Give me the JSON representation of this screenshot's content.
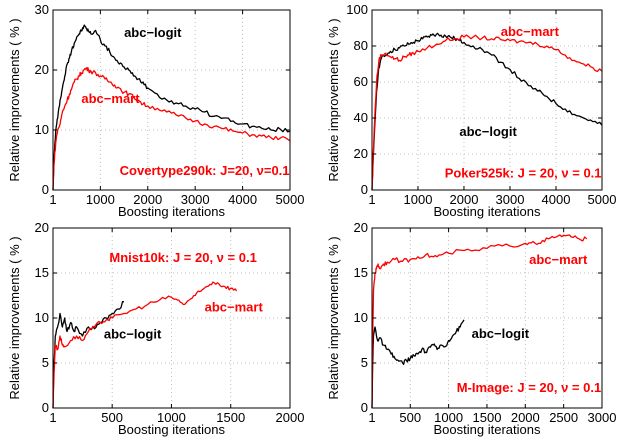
{
  "chart_data": [
    {
      "type": "line",
      "annotation": "Covertype290k: J=20, ν=0.1",
      "xlabel": "Boosting iterations",
      "ylabel": "Relative improvements ( % )",
      "xlim": [
        1,
        5000
      ],
      "ylim": [
        0,
        30
      ],
      "xticks": [
        1,
        1000,
        2000,
        3000,
        4000,
        5000
      ],
      "xtick_labels": [
        "1",
        "1000",
        "2000",
        "3000",
        "4000",
        "5000"
      ],
      "yticks": [
        0,
        10,
        20,
        30
      ],
      "ytick_labels": [
        "0",
        "10",
        "20",
        "30"
      ],
      "grid": true,
      "series": [
        {
          "name": "abc−logit",
          "color": "#000000",
          "x": [
            1,
            20,
            60,
            100,
            150,
            200,
            250,
            300,
            350,
            400,
            450,
            500,
            550,
            600,
            650,
            700,
            750,
            800,
            900,
            1000,
            1100,
            1200,
            1300,
            1400,
            1500,
            1600,
            1700,
            1800,
            1900,
            2000,
            2200,
            2400,
            2600,
            2800,
            3000,
            3200,
            3400,
            3600,
            3800,
            4000,
            4200,
            4400,
            4600,
            4800,
            5000
          ],
          "y": [
            0,
            5,
            10,
            12,
            15,
            17,
            19,
            21,
            22,
            23.5,
            24.5,
            25.5,
            26,
            26.5,
            27.3,
            27,
            26.5,
            26,
            26.6,
            25,
            24,
            23,
            22,
            21,
            20.5,
            20,
            19,
            18.5,
            18,
            17,
            16,
            15,
            14.5,
            14,
            13.5,
            13,
            12.3,
            12,
            11.5,
            11,
            10.6,
            10.3,
            10,
            10.1,
            9.8
          ]
        },
        {
          "name": "abc−mart",
          "color": "#ff0000",
          "x": [
            1,
            20,
            60,
            100,
            150,
            200,
            250,
            300,
            350,
            400,
            450,
            500,
            550,
            600,
            650,
            700,
            750,
            800,
            900,
            1000,
            1100,
            1200,
            1300,
            1400,
            1500,
            1600,
            1700,
            1800,
            1900,
            2000,
            2200,
            2400,
            2600,
            2800,
            3000,
            3200,
            3400,
            3600,
            3800,
            4000,
            4200,
            4400,
            4600,
            4800,
            5000
          ],
          "y": [
            0,
            4,
            8,
            10,
            11,
            13,
            14,
            15,
            16,
            17,
            18,
            18.5,
            19,
            19.5,
            20,
            20.3,
            20,
            19.8,
            19.5,
            19,
            18.5,
            18,
            17.5,
            17,
            16.3,
            16,
            15.5,
            15,
            14.3,
            14,
            13.6,
            13,
            12.5,
            12,
            11.5,
            11,
            10.6,
            10.2,
            9.8,
            9.5,
            9.2,
            9,
            8.7,
            8.7,
            8.2
          ]
        }
      ]
    },
    {
      "type": "line",
      "annotation": "Poker525k: J = 20, ν = 0.1",
      "xlabel": "Boosting iterations",
      "ylabel": "Relative improvements ( % )",
      "xlim": [
        1,
        5000
      ],
      "ylim": [
        0,
        100
      ],
      "xticks": [
        1,
        1000,
        2000,
        3000,
        4000,
        5000
      ],
      "xtick_labels": [
        "1",
        "1000",
        "2000",
        "3000",
        "4000",
        "5000"
      ],
      "yticks": [
        0,
        20,
        40,
        60,
        80,
        100
      ],
      "ytick_labels": [
        "0",
        "20",
        "40",
        "60",
        "80",
        "100"
      ],
      "grid": true,
      "series": [
        {
          "name": "abc−logit",
          "color": "#000000",
          "x": [
            1,
            50,
            100,
            150,
            200,
            300,
            400,
            500,
            600,
            700,
            800,
            900,
            1000,
            1100,
            1200,
            1300,
            1400,
            1500,
            1600,
            1700,
            1800,
            1900,
            2000,
            2200,
            2400,
            2600,
            2800,
            3000,
            3200,
            3400,
            3600,
            3800,
            4000,
            4200,
            4400,
            4600,
            4800,
            5000
          ],
          "y": [
            0,
            30,
            55,
            68,
            73,
            75,
            77,
            78,
            79,
            80,
            81,
            82,
            83,
            84,
            85,
            86,
            86.5,
            86,
            85.5,
            85,
            84,
            83,
            82,
            80,
            78,
            75,
            71,
            67,
            62,
            58,
            55,
            52,
            48,
            45,
            42,
            40,
            38,
            36
          ]
        },
        {
          "name": "abc−mart",
          "color": "#ff0000",
          "x": [
            1,
            50,
            100,
            150,
            200,
            300,
            400,
            500,
            600,
            700,
            800,
            900,
            1000,
            1200,
            1400,
            1600,
            1800,
            2000,
            2200,
            2400,
            2600,
            2800,
            3000,
            3200,
            3400,
            3600,
            3800,
            4000,
            4200,
            4400,
            4600,
            4800,
            5000
          ],
          "y": [
            0,
            35,
            60,
            72,
            75,
            76,
            74,
            73,
            72,
            74,
            75,
            76,
            77,
            79,
            81,
            83,
            84,
            85,
            85,
            84.5,
            84,
            83.5,
            83,
            82.5,
            82,
            81,
            80,
            78,
            75,
            72,
            70,
            68,
            66
          ]
        }
      ]
    },
    {
      "type": "line",
      "annotation": "Mnist10k: J = 20, ν = 0.1",
      "xlabel": "Boosting iterations",
      "ylabel": "Relative improvements ( % )",
      "xlim": [
        1,
        2000
      ],
      "ylim": [
        0,
        20
      ],
      "xticks": [
        1,
        500,
        1000,
        1500,
        2000
      ],
      "xtick_labels": [
        "1",
        "500",
        "1000",
        "1500",
        "2000"
      ],
      "yticks": [
        0,
        5,
        10,
        15,
        20
      ],
      "ytick_labels": [
        "0",
        "5",
        "10",
        "15",
        "20"
      ],
      "grid": true,
      "series": [
        {
          "name": "abc−logit",
          "color": "#000000",
          "x": [
            1,
            10,
            20,
            40,
            60,
            80,
            100,
            120,
            150,
            180,
            200,
            250,
            300,
            350,
            400,
            450,
            500,
            550,
            600
          ],
          "y": [
            0,
            5,
            8,
            9,
            10.5,
            9,
            10,
            8.5,
            9.5,
            8.5,
            9,
            8,
            9,
            8.8,
            9.5,
            10,
            10.5,
            11,
            11.8
          ]
        },
        {
          "name": "abc−mart",
          "color": "#ff0000",
          "x": [
            1,
            10,
            20,
            40,
            60,
            80,
            100,
            150,
            200,
            250,
            300,
            350,
            400,
            450,
            500,
            600,
            700,
            800,
            900,
            1000,
            1050,
            1100,
            1150,
            1200,
            1250,
            1300,
            1350,
            1400,
            1450,
            1500,
            1550
          ],
          "y": [
            0,
            4,
            7,
            6.5,
            8,
            7,
            6.8,
            7.5,
            8,
            7.5,
            8.5,
            9,
            9.5,
            9.8,
            10,
            10.5,
            11,
            11.5,
            12,
            12.3,
            12,
            11.5,
            12,
            12.5,
            13,
            13.5,
            14,
            13.8,
            13.5,
            13.3,
            13
          ]
        }
      ]
    },
    {
      "type": "line",
      "annotation": "M-Image: J = 20, ν = 0.1",
      "xlabel": "Boosting iterations",
      "ylabel": "Relative improvements ( % )",
      "xlim": [
        1,
        3000
      ],
      "ylim": [
        0,
        20
      ],
      "xticks": [
        1,
        500,
        1000,
        1500,
        2000,
        2500,
        3000
      ],
      "xtick_labels": [
        "1",
        "500",
        "1000",
        "1500",
        "2000",
        "2500",
        "3000"
      ],
      "yticks": [
        0,
        5,
        10,
        15,
        20
      ],
      "ytick_labels": [
        "0",
        "5",
        "10",
        "15",
        "20"
      ],
      "grid": true,
      "series": [
        {
          "name": "abc−logit",
          "color": "#000000",
          "x": [
            1,
            10,
            20,
            40,
            60,
            80,
            100,
            150,
            200,
            250,
            300,
            350,
            400,
            450,
            500,
            550,
            600,
            650,
            700,
            750,
            800,
            850,
            900,
            950,
            1000,
            1050,
            1100,
            1150,
            1200
          ],
          "y": [
            0,
            5,
            8,
            9,
            8,
            7.5,
            7.8,
            7,
            6.5,
            6,
            5.5,
            5.2,
            5,
            5.3,
            5.5,
            5.8,
            6,
            6.5,
            6.2,
            6.8,
            7,
            6.5,
            7,
            6.8,
            7.5,
            8,
            8.5,
            9,
            9.8
          ]
        },
        {
          "name": "abc−mart",
          "color": "#ff0000",
          "x": [
            1,
            10,
            20,
            40,
            60,
            80,
            100,
            150,
            200,
            300,
            400,
            500,
            600,
            700,
            800,
            900,
            1000,
            1200,
            1400,
            1600,
            1800,
            2000,
            2100,
            2200,
            2300,
            2400,
            2500,
            2600,
            2700,
            2800
          ],
          "y": [
            0,
            8,
            13,
            15,
            15.5,
            16,
            15.5,
            16,
            16.2,
            16.5,
            16.3,
            16.5,
            16.8,
            17,
            16.8,
            17,
            17.2,
            17.5,
            17.5,
            18,
            18,
            18.3,
            18.5,
            18.3,
            18.8,
            19,
            19.2,
            19,
            18.8,
            18.8
          ]
        }
      ]
    }
  ]
}
